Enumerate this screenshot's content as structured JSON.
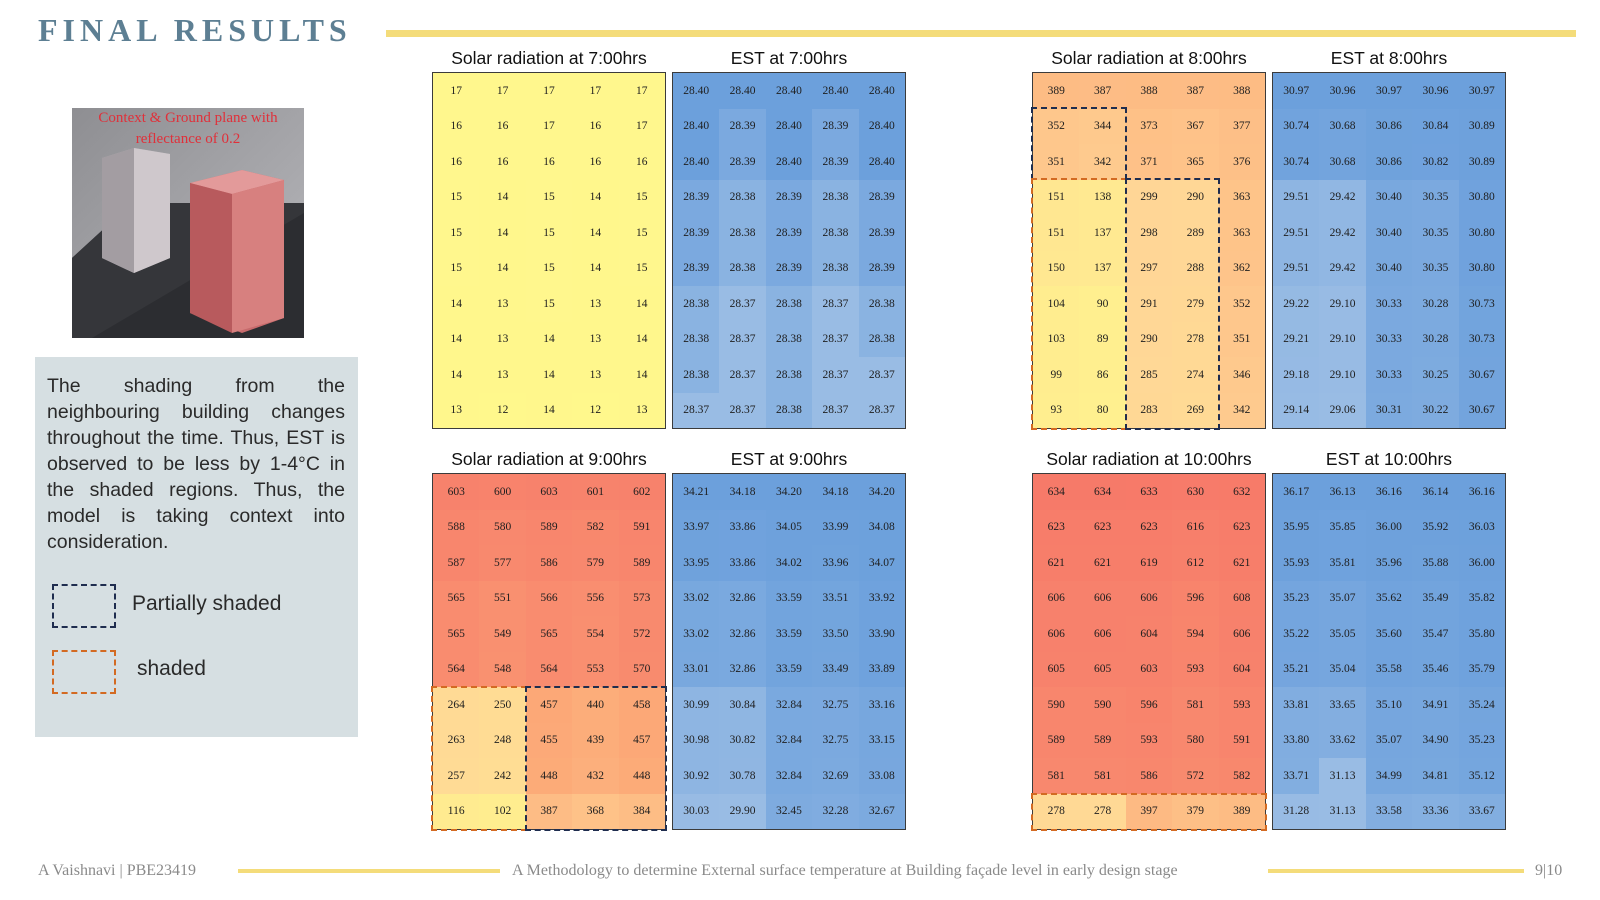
{
  "header": {
    "title": "FINAL RESULTS"
  },
  "context_image": {
    "caption": "Context & Ground plane with reflectance of 0.2"
  },
  "description": "The shading from the neighbouring building changes throughout the time. Thus, EST is observed to be less by 1-4°C in the shaded regions. Thus, the model is taking context into consideration.",
  "legend": {
    "partial": "Partially shaded",
    "shaded": "shaded"
  },
  "colors": {
    "title": "#5d7f93",
    "accent_line": "#f4dc7a",
    "partial_outline": "#1f2d4f",
    "shaded_outline": "#d36a22"
  },
  "chart_data": [
    {
      "type": "heatmap",
      "title": "Solar radiation at 7:00hrs",
      "values": [
        [
          17,
          17,
          17,
          17,
          17
        ],
        [
          16,
          16,
          17,
          16,
          17
        ],
        [
          16,
          16,
          16,
          16,
          16
        ],
        [
          15,
          14,
          15,
          14,
          15
        ],
        [
          15,
          14,
          15,
          14,
          15
        ],
        [
          15,
          14,
          15,
          14,
          15
        ],
        [
          14,
          13,
          15,
          13,
          14
        ],
        [
          14,
          13,
          14,
          13,
          14
        ],
        [
          14,
          13,
          14,
          13,
          14
        ],
        [
          13,
          12,
          14,
          12,
          13
        ]
      ]
    },
    {
      "type": "heatmap",
      "title": "EST at 7:00hrs",
      "values": [
        [
          "28.40",
          "28.40",
          "28.40",
          "28.40",
          "28.40"
        ],
        [
          "28.40",
          "28.39",
          "28.40",
          "28.39",
          "28.40"
        ],
        [
          "28.40",
          "28.39",
          "28.40",
          "28.39",
          "28.40"
        ],
        [
          "28.39",
          "28.38",
          "28.39",
          "28.38",
          "28.39"
        ],
        [
          "28.39",
          "28.38",
          "28.39",
          "28.38",
          "28.39"
        ],
        [
          "28.39",
          "28.38",
          "28.39",
          "28.38",
          "28.39"
        ],
        [
          "28.38",
          "28.37",
          "28.38",
          "28.37",
          "28.38"
        ],
        [
          "28.38",
          "28.37",
          "28.38",
          "28.37",
          "28.38"
        ],
        [
          "28.38",
          "28.37",
          "28.38",
          "28.37",
          "28.37"
        ],
        [
          "28.37",
          "28.37",
          "28.38",
          "28.37",
          "28.37"
        ]
      ]
    },
    {
      "type": "heatmap",
      "title": "Solar radiation at 8:00hrs",
      "values": [
        [
          389,
          387,
          388,
          387,
          388
        ],
        [
          352,
          344,
          373,
          367,
          377
        ],
        [
          351,
          342,
          371,
          365,
          376
        ],
        [
          151,
          138,
          299,
          290,
          363
        ],
        [
          151,
          137,
          298,
          289,
          363
        ],
        [
          150,
          137,
          297,
          288,
          362
        ],
        [
          104,
          90,
          291,
          279,
          352
        ],
        [
          103,
          89,
          290,
          278,
          351
        ],
        [
          99,
          86,
          285,
          274,
          346
        ],
        [
          93,
          80,
          283,
          269,
          342
        ]
      ]
    },
    {
      "type": "heatmap",
      "title": "EST at 8:00hrs",
      "values": [
        [
          "30.97",
          "30.96",
          "30.97",
          "30.96",
          "30.97"
        ],
        [
          "30.74",
          "30.68",
          "30.86",
          "30.84",
          "30.89"
        ],
        [
          "30.74",
          "30.68",
          "30.86",
          "30.82",
          "30.89"
        ],
        [
          "29.51",
          "29.42",
          "30.40",
          "30.35",
          "30.80"
        ],
        [
          "29.51",
          "29.42",
          "30.40",
          "30.35",
          "30.80"
        ],
        [
          "29.51",
          "29.42",
          "30.40",
          "30.35",
          "30.80"
        ],
        [
          "29.22",
          "29.10",
          "30.33",
          "30.28",
          "30.73"
        ],
        [
          "29.21",
          "29.10",
          "30.33",
          "30.28",
          "30.73"
        ],
        [
          "29.18",
          "29.10",
          "30.33",
          "30.25",
          "30.67"
        ],
        [
          "29.14",
          "29.06",
          "30.31",
          "30.22",
          "30.67"
        ]
      ]
    },
    {
      "type": "heatmap",
      "title": "Solar radiation at 9:00hrs",
      "values": [
        [
          603,
          600,
          603,
          601,
          602
        ],
        [
          588,
          580,
          589,
          582,
          591
        ],
        [
          587,
          577,
          586,
          579,
          589
        ],
        [
          565,
          551,
          566,
          556,
          573
        ],
        [
          565,
          549,
          565,
          554,
          572
        ],
        [
          564,
          548,
          564,
          553,
          570
        ],
        [
          264,
          250,
          457,
          440,
          458
        ],
        [
          263,
          248,
          455,
          439,
          457
        ],
        [
          257,
          242,
          448,
          432,
          448
        ],
        [
          116,
          102,
          387,
          368,
          384
        ]
      ]
    },
    {
      "type": "heatmap",
      "title": "EST at 9:00hrs",
      "values": [
        [
          "34.21",
          "34.18",
          "34.20",
          "34.18",
          "34.20"
        ],
        [
          "33.97",
          "33.86",
          "34.05",
          "33.99",
          "34.08"
        ],
        [
          "33.95",
          "33.86",
          "34.02",
          "33.96",
          "34.07"
        ],
        [
          "33.02",
          "32.86",
          "33.59",
          "33.51",
          "33.92"
        ],
        [
          "33.02",
          "32.86",
          "33.59",
          "33.50",
          "33.90"
        ],
        [
          "33.01",
          "32.86",
          "33.59",
          "33.49",
          "33.89"
        ],
        [
          "30.99",
          "30.84",
          "32.84",
          "32.75",
          "33.16"
        ],
        [
          "30.98",
          "30.82",
          "32.84",
          "32.75",
          "33.15"
        ],
        [
          "30.92",
          "30.78",
          "32.84",
          "32.69",
          "33.08"
        ],
        [
          "30.03",
          "29.90",
          "32.45",
          "32.28",
          "32.67"
        ]
      ]
    },
    {
      "type": "heatmap",
      "title": "Solar radiation at 10:00hrs",
      "values": [
        [
          634,
          634,
          633,
          630,
          632
        ],
        [
          623,
          623,
          623,
          616,
          623
        ],
        [
          621,
          621,
          619,
          612,
          621
        ],
        [
          606,
          606,
          606,
          596,
          608
        ],
        [
          606,
          606,
          604,
          594,
          606
        ],
        [
          605,
          605,
          603,
          593,
          604
        ],
        [
          590,
          590,
          596,
          581,
          593
        ],
        [
          589,
          589,
          593,
          580,
          591
        ],
        [
          581,
          581,
          586,
          572,
          582
        ],
        [
          278,
          278,
          397,
          379,
          389
        ]
      ]
    },
    {
      "type": "heatmap",
      "title": "EST at 10:00hrs",
      "values": [
        [
          "36.17",
          "36.13",
          "36.16",
          "36.14",
          "36.16"
        ],
        [
          "35.95",
          "35.85",
          "36.00",
          "35.92",
          "36.03"
        ],
        [
          "35.93",
          "35.81",
          "35.96",
          "35.88",
          "36.00"
        ],
        [
          "35.23",
          "35.07",
          "35.62",
          "35.49",
          "35.82"
        ],
        [
          "35.22",
          "35.05",
          "35.60",
          "35.47",
          "35.80"
        ],
        [
          "35.21",
          "35.04",
          "35.58",
          "35.46",
          "35.79"
        ],
        [
          "33.81",
          "33.65",
          "35.10",
          "34.91",
          "35.24"
        ],
        [
          "33.80",
          "33.62",
          "35.07",
          "34.90",
          "35.23"
        ],
        [
          "33.71",
          "31.13",
          "34.99",
          "34.81",
          "35.12"
        ],
        [
          "31.28",
          "31.13",
          "33.58",
          "33.36",
          "33.67"
        ]
      ]
    }
  ],
  "footer": {
    "author": "A Vaishnavi | PBE23419",
    "subtitle": "A Methodology to determine External surface temperature at Building façade level in early design stage",
    "page": "9|10"
  }
}
